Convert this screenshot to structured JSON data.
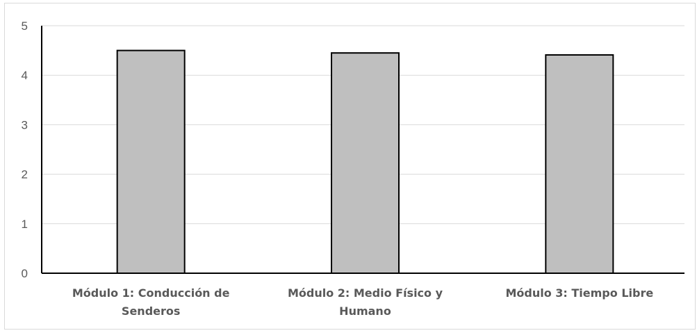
{
  "chart_data": {
    "type": "bar",
    "title": "",
    "xlabel": "",
    "ylabel": "",
    "categories": [
      [
        "Módulo 1: Conducción de",
        "Senderos"
      ],
      [
        "Módulo 2: Medio Físico y",
        "Humano"
      ],
      [
        "Módulo 3: Tiempo Libre"
      ]
    ],
    "values": [
      4.5,
      4.45,
      4.41
    ],
    "ylim": [
      0,
      5
    ],
    "yticks": [
      "0",
      "1",
      "2",
      "3",
      "4",
      "5"
    ],
    "grid": true,
    "legend": "none",
    "colors": {
      "bar_fill": "#bfbfbf",
      "bar_stroke": "#000000",
      "grid": "#d9d9d9",
      "axis": "#000000",
      "text": "#595959"
    }
  }
}
